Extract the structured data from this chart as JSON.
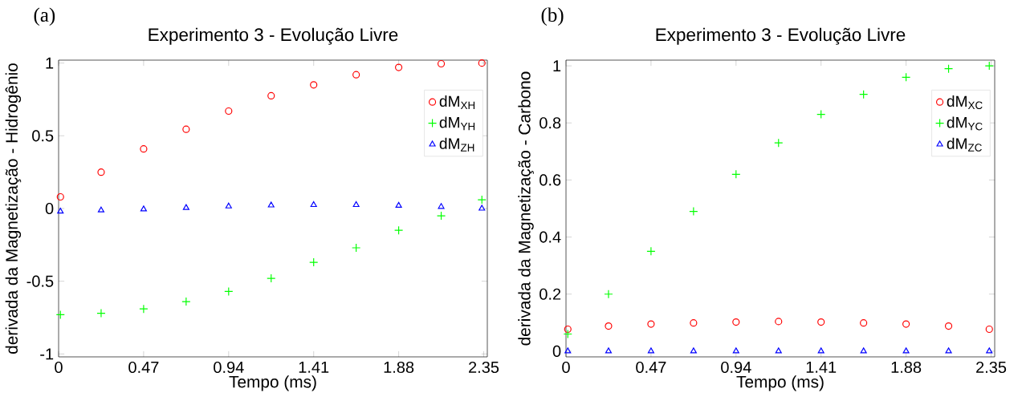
{
  "chart_data": [
    {
      "type": "scatter",
      "title": "Experimento 3 - Evolução Livre",
      "xlabel": "Tempo (ms)",
      "ylabel": "derivada da Magnetização - Hidrogênio",
      "annotations": [
        "(a)"
      ],
      "x": [
        0.01,
        0.235,
        0.47,
        0.705,
        0.94,
        1.175,
        1.41,
        1.645,
        1.88,
        2.115,
        2.34
      ],
      "xlim": [
        0,
        2.37
      ],
      "ylim": [
        -1.02,
        1.02
      ],
      "xticks": [
        0,
        0.47,
        0.94,
        1.41,
        1.88,
        2.35
      ],
      "yticks": [
        -1,
        -0.5,
        0,
        0.5,
        1
      ],
      "grid": false,
      "legend": "top right",
      "series": [
        {
          "name": "dM$_{XH}$",
          "color": "#ff0000",
          "marker": "circle",
          "values": [
            0.08,
            0.25,
            0.41,
            0.545,
            0.67,
            0.775,
            0.85,
            0.92,
            0.97,
            0.995,
            1.0
          ]
        },
        {
          "name": "dM$_{YH}$",
          "color": "#00ff00",
          "marker": "cross",
          "values": [
            -0.73,
            -0.72,
            -0.69,
            -0.64,
            -0.57,
            -0.48,
            -0.37,
            -0.27,
            -0.15,
            -0.05,
            0.06
          ]
        },
        {
          "name": "dM$_{ZH}$",
          "color": "#0000ff",
          "marker": "triangle",
          "values": [
            -0.02,
            -0.012,
            -0.005,
            0.005,
            0.015,
            0.022,
            0.025,
            0.025,
            0.02,
            0.012,
            0.0
          ]
        }
      ]
    },
    {
      "type": "scatter",
      "title": "Experimento 3 - Evolução Livre",
      "xlabel": "Tempo (ms)",
      "ylabel": "derivada da Magnetização - Carbono",
      "annotations": [
        "(b)"
      ],
      "x": [
        0.01,
        0.235,
        0.47,
        0.705,
        0.94,
        1.175,
        1.41,
        1.645,
        1.88,
        2.115,
        2.34
      ],
      "xlim": [
        0,
        2.37
      ],
      "ylim": [
        -0.02,
        1.02
      ],
      "xticks": [
        0,
        0.47,
        0.94,
        1.41,
        1.88,
        2.35
      ],
      "yticks": [
        0,
        0.2,
        0.4,
        0.6,
        0.8,
        1
      ],
      "grid": false,
      "legend": "top right",
      "series": [
        {
          "name": "dM$_{XC}$",
          "color": "#ff0000",
          "marker": "circle",
          "values": [
            0.077,
            0.088,
            0.095,
            0.099,
            0.102,
            0.104,
            0.102,
            0.099,
            0.095,
            0.088,
            0.077
          ]
        },
        {
          "name": "dM$_{YC}$",
          "color": "#00ff00",
          "marker": "cross",
          "values": [
            0.06,
            0.2,
            0.35,
            0.49,
            0.62,
            0.73,
            0.83,
            0.9,
            0.96,
            0.99,
            1.0
          ]
        },
        {
          "name": "dM$_{ZC}$",
          "color": "#0000ff",
          "marker": "triangle",
          "values": [
            0,
            0,
            0,
            0,
            0,
            0,
            0,
            0,
            0,
            0,
            0
          ]
        }
      ]
    }
  ]
}
